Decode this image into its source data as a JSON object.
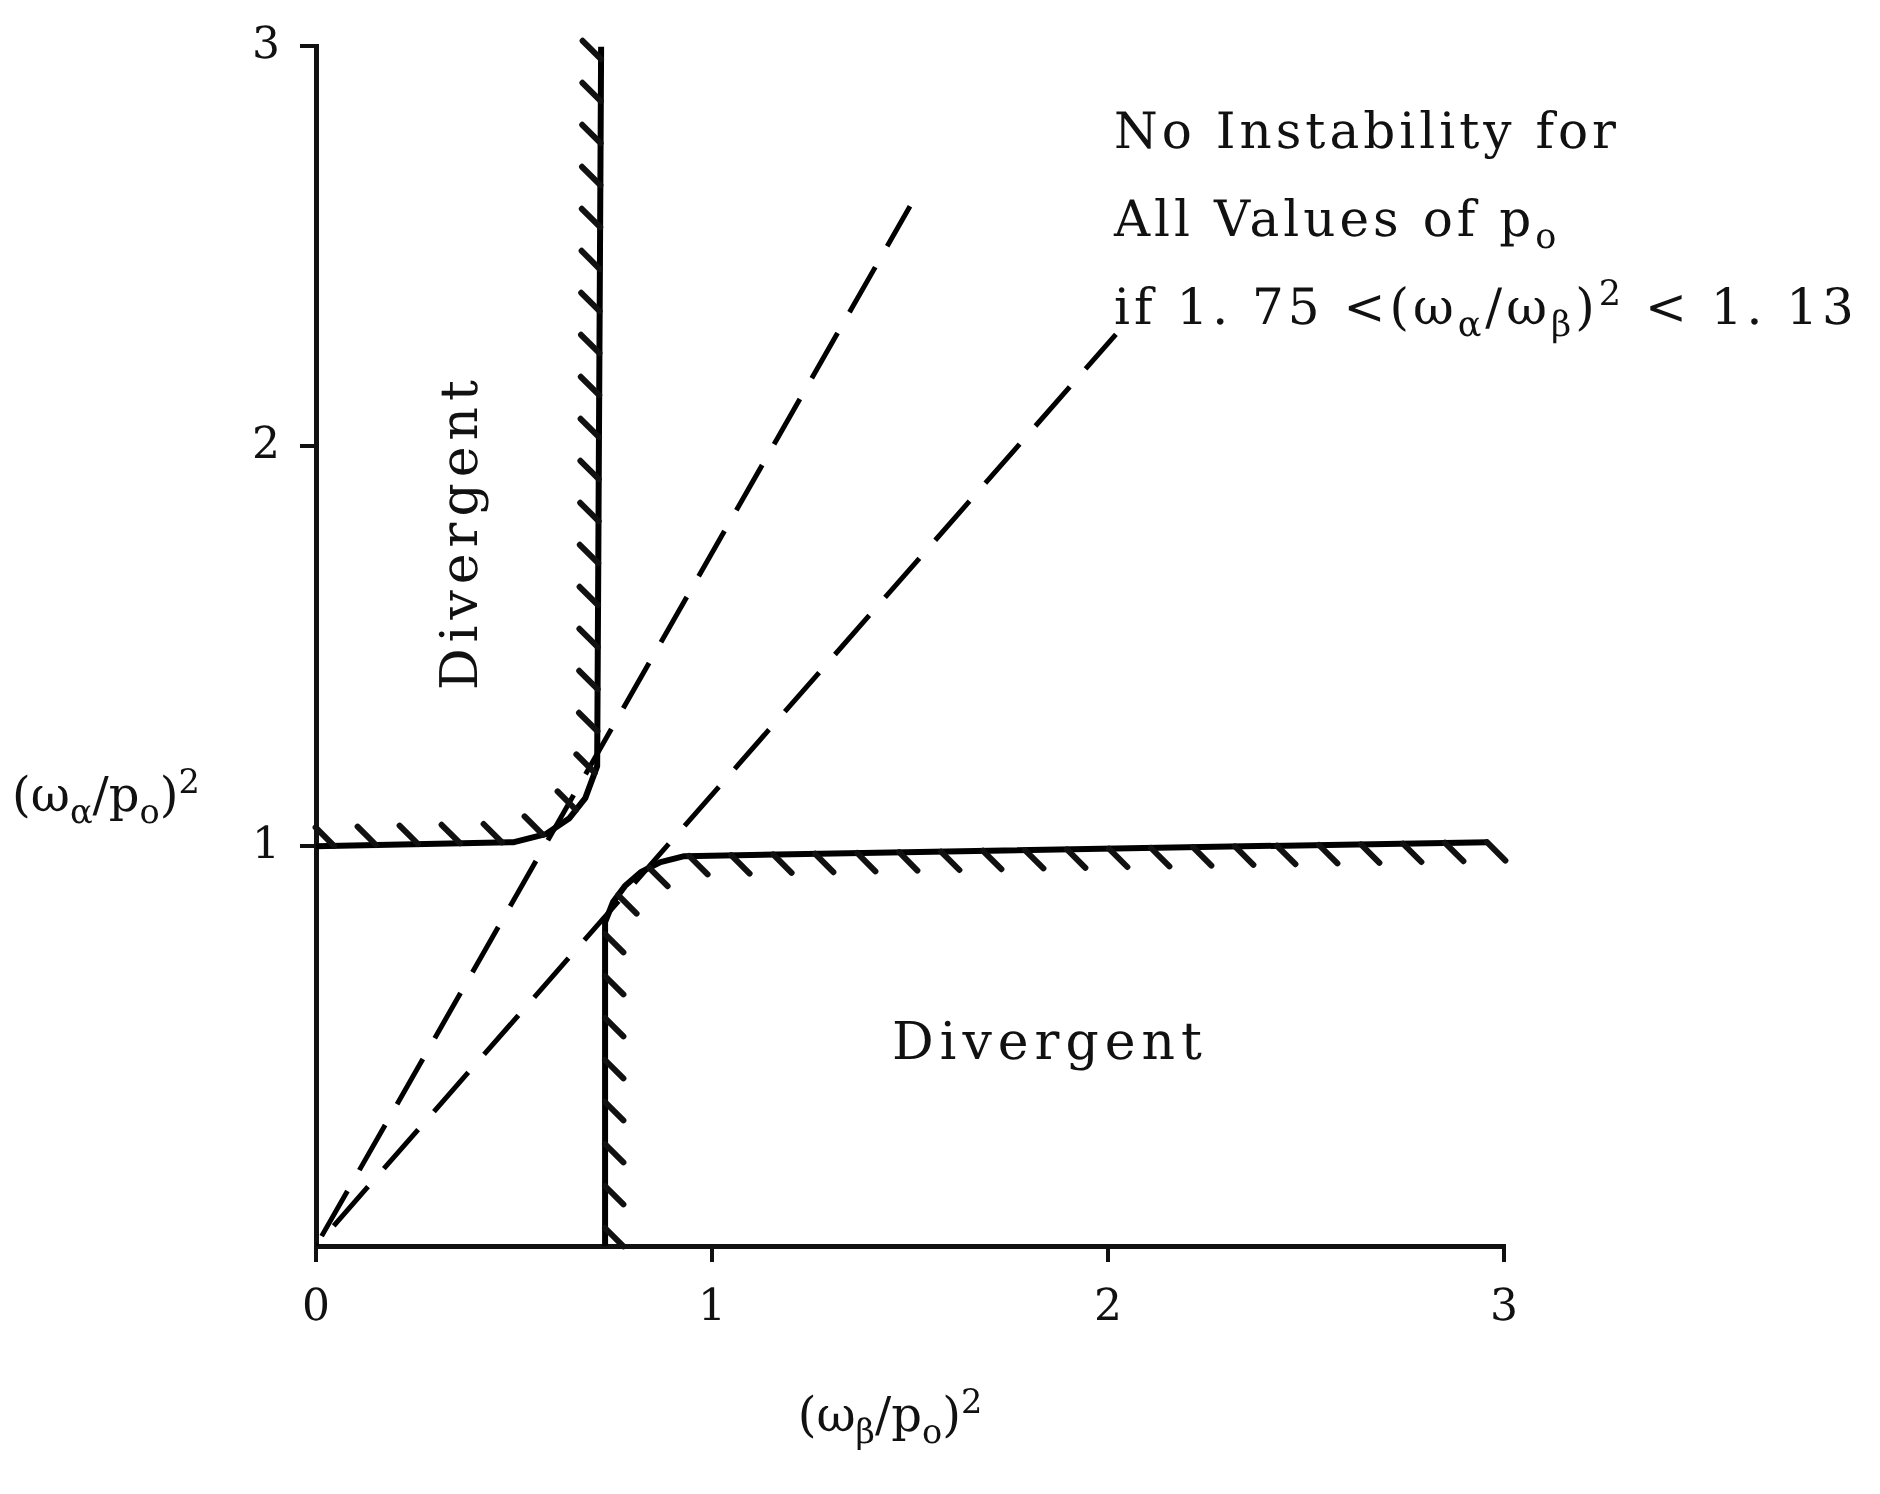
{
  "chart_data": {
    "type": "line",
    "xlabel": "(ω$_{β}$/p$_{o}$)$^{2}$",
    "ylabel": "(ω$_{α}$/p$_{o}$)$^{2}$",
    "annotations": [
      "Divergent",
      "Divergent",
      "No Instability for\nAll Values of p$_{o}$\nif 1. 75 <(ω$_{α}$/ω$_{β}$)$^{2}$ < 1. 13"
    ],
    "xlim": [
      0,
      3
    ],
    "ylim": [
      0,
      3
    ],
    "xticks": [
      0,
      1,
      2,
      3
    ],
    "yticks": [
      1,
      2,
      3
    ],
    "marker": "none",
    "line_style": "solid",
    "series": [
      {
        "color": "#000000",
        "x": [
          0,
          0.5,
          0.58,
          0.64,
          0.68,
          0.71,
          0.72
        ],
        "values": [
          1,
          1.01,
          1.03,
          1.07,
          1.12,
          1.2,
          3
        ]
      },
      {
        "color": "#000000",
        "x": [
          0.73,
          0.73,
          0.75,
          0.78,
          0.82,
          0.87,
          0.93,
          1.2,
          2.96
        ],
        "values": [
          0,
          0.81,
          0.86,
          0.9,
          0.935,
          0.96,
          0.975,
          0.98,
          1.01
        ]
      },
      {
        "color": "#000000",
        "line_style": "dashed",
        "x": [
          0,
          1.5
        ],
        "values": [
          0,
          2.6
        ]
      },
      {
        "color": "#000000",
        "line_style": "dashed",
        "x": [
          0,
          2.02
        ],
        "values": [
          0,
          2.28
        ]
      }
    ]
  }
}
